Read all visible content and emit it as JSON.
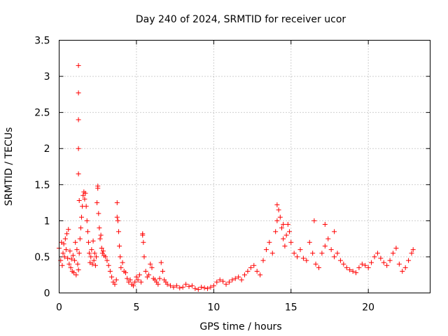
{
  "chart_data": {
    "type": "scatter",
    "title": "Day 240 of 2024, SRMTID for receiver ucor",
    "xlabel": "GPS time / hours",
    "ylabel": "SRMTID / TECUs",
    "xlim": [
      0,
      24
    ],
    "ylim": [
      0,
      3.5
    ],
    "xticks": [
      0,
      5,
      10,
      15,
      20
    ],
    "xtick_labels": [
      "0",
      "5",
      "10",
      "15",
      "20"
    ],
    "yticks": [
      0,
      0.5,
      1,
      1.5,
      2,
      2.5,
      3,
      3.5
    ],
    "ytick_labels": [
      "0",
      "0.5",
      "1",
      "1.5",
      "2",
      "2.5",
      "3",
      "3.5"
    ],
    "grid": true,
    "marker": "+",
    "series_color": "#ff0000",
    "series": [
      {
        "name": "SRMTID",
        "points": [
          [
            0.0,
            0.62
          ],
          [
            0.1,
            0.45
          ],
          [
            0.15,
            0.7
          ],
          [
            0.2,
            0.38
          ],
          [
            0.25,
            0.55
          ],
          [
            0.3,
            0.68
          ],
          [
            0.35,
            0.5
          ],
          [
            0.4,
            0.75
          ],
          [
            0.45,
            0.6
          ],
          [
            0.5,
            0.82
          ],
          [
            0.55,
            0.48
          ],
          [
            0.6,
            0.88
          ],
          [
            0.65,
            0.4
          ],
          [
            0.7,
            0.58
          ],
          [
            0.75,
            0.35
          ],
          [
            0.8,
            0.47
          ],
          [
            0.85,
            0.3
          ],
          [
            0.9,
            0.52
          ],
          [
            0.95,
            0.28
          ],
          [
            1.0,
            0.45
          ],
          [
            1.05,
            0.7
          ],
          [
            1.1,
            0.25
          ],
          [
            1.15,
            0.6
          ],
          [
            1.2,
            0.4
          ],
          [
            1.25,
            0.32
          ],
          [
            1.3,
            0.55
          ],
          [
            1.35,
            0.75
          ],
          [
            1.4,
            0.9
          ],
          [
            1.45,
            1.05
          ],
          [
            1.5,
            1.2
          ],
          [
            1.55,
            1.35
          ],
          [
            1.6,
            1.4
          ],
          [
            1.65,
            1.3
          ],
          [
            1.7,
            1.38
          ],
          [
            1.75,
            1.2
          ],
          [
            1.8,
            1.0
          ],
          [
            1.85,
            0.85
          ],
          [
            1.9,
            0.7
          ],
          [
            1.95,
            0.55
          ],
          [
            2.0,
            0.42
          ],
          [
            2.05,
            0.5
          ],
          [
            2.1,
            0.6
          ],
          [
            2.15,
            0.4
          ],
          [
            2.2,
            0.72
          ],
          [
            2.25,
            0.45
          ],
          [
            2.3,
            0.55
          ],
          [
            2.35,
            0.38
          ],
          [
            2.4,
            0.5
          ],
          [
            2.45,
            1.25
          ],
          [
            2.5,
            1.45
          ],
          [
            2.55,
            1.1
          ],
          [
            2.6,
            0.9
          ],
          [
            2.65,
            0.75
          ],
          [
            2.7,
            0.8
          ],
          [
            2.75,
            0.62
          ],
          [
            2.8,
            0.55
          ],
          [
            2.85,
            0.58
          ],
          [
            2.9,
            0.52
          ],
          [
            3.0,
            0.5
          ],
          [
            3.1,
            0.45
          ],
          [
            3.2,
            0.38
          ],
          [
            3.3,
            0.3
          ],
          [
            3.4,
            0.22
          ],
          [
            3.5,
            0.15
          ],
          [
            3.6,
            0.12
          ],
          [
            3.7,
            0.18
          ],
          [
            3.75,
            1.25
          ],
          [
            3.8,
            1.0
          ],
          [
            3.85,
            0.85
          ],
          [
            3.9,
            0.65
          ],
          [
            3.95,
            0.5
          ],
          [
            4.0,
            0.35
          ],
          [
            4.1,
            0.42
          ],
          [
            4.2,
            0.3
          ],
          [
            4.3,
            0.28
          ],
          [
            4.4,
            0.2
          ],
          [
            4.5,
            0.15
          ],
          [
            4.6,
            0.18
          ],
          [
            4.7,
            0.12
          ],
          [
            4.8,
            0.1
          ],
          [
            4.9,
            0.15
          ],
          [
            5.0,
            0.22
          ],
          [
            5.1,
            0.18
          ],
          [
            5.2,
            0.25
          ],
          [
            5.3,
            0.15
          ],
          [
            5.4,
            0.8
          ],
          [
            5.45,
            0.7
          ],
          [
            5.5,
            0.5
          ],
          [
            5.6,
            0.3
          ],
          [
            5.7,
            0.22
          ],
          [
            5.8,
            0.25
          ],
          [
            5.9,
            0.4
          ],
          [
            6.0,
            0.35
          ],
          [
            6.1,
            0.2
          ],
          [
            6.2,
            0.18
          ],
          [
            6.3,
            0.15
          ],
          [
            6.4,
            0.12
          ],
          [
            6.5,
            0.2
          ],
          [
            6.6,
            0.42
          ],
          [
            6.7,
            0.3
          ],
          [
            6.8,
            0.18
          ],
          [
            6.9,
            0.15
          ],
          [
            7.0,
            0.12
          ],
          [
            7.2,
            0.1
          ],
          [
            7.4,
            0.08
          ],
          [
            7.6,
            0.1
          ],
          [
            7.8,
            0.07
          ],
          [
            8.0,
            0.08
          ],
          [
            8.2,
            0.12
          ],
          [
            8.4,
            0.09
          ],
          [
            8.6,
            0.1
          ],
          [
            8.8,
            0.06
          ],
          [
            9.0,
            0.05
          ],
          [
            9.2,
            0.08
          ],
          [
            9.4,
            0.07
          ],
          [
            9.6,
            0.06
          ],
          [
            9.8,
            0.08
          ],
          [
            10.0,
            0.1
          ],
          [
            10.2,
            0.15
          ],
          [
            10.4,
            0.18
          ],
          [
            10.6,
            0.16
          ],
          [
            10.8,
            0.12
          ],
          [
            11.0,
            0.15
          ],
          [
            11.2,
            0.18
          ],
          [
            11.4,
            0.2
          ],
          [
            11.6,
            0.22
          ],
          [
            11.8,
            0.18
          ],
          [
            12.0,
            0.25
          ],
          [
            12.2,
            0.3
          ],
          [
            12.4,
            0.35
          ],
          [
            12.6,
            0.38
          ],
          [
            12.8,
            0.3
          ],
          [
            13.0,
            0.25
          ],
          [
            13.2,
            0.45
          ],
          [
            13.4,
            0.6
          ],
          [
            13.6,
            0.7
          ],
          [
            13.8,
            0.55
          ],
          [
            14.0,
            0.85
          ],
          [
            14.1,
            1.0
          ],
          [
            14.2,
            1.15
          ],
          [
            14.3,
            1.05
          ],
          [
            14.4,
            0.9
          ],
          [
            14.5,
            0.75
          ],
          [
            14.6,
            0.65
          ],
          [
            14.7,
            0.8
          ],
          [
            14.8,
            0.95
          ],
          [
            14.9,
            0.85
          ],
          [
            15.0,
            0.7
          ],
          [
            15.2,
            0.55
          ],
          [
            15.4,
            0.5
          ],
          [
            15.6,
            0.6
          ],
          [
            15.8,
            0.48
          ],
          [
            16.0,
            0.45
          ],
          [
            16.2,
            0.7
          ],
          [
            16.4,
            0.55
          ],
          [
            16.6,
            0.4
          ],
          [
            16.8,
            0.35
          ],
          [
            17.0,
            0.55
          ],
          [
            17.2,
            0.65
          ],
          [
            17.4,
            0.75
          ],
          [
            17.6,
            0.6
          ],
          [
            17.8,
            0.5
          ],
          [
            18.0,
            0.55
          ],
          [
            18.2,
            0.45
          ],
          [
            18.4,
            0.4
          ],
          [
            18.6,
            0.35
          ],
          [
            18.8,
            0.32
          ],
          [
            19.0,
            0.3
          ],
          [
            19.2,
            0.28
          ],
          [
            19.4,
            0.35
          ],
          [
            19.6,
            0.4
          ],
          [
            19.8,
            0.38
          ],
          [
            20.0,
            0.35
          ],
          [
            20.2,
            0.42
          ],
          [
            20.4,
            0.5
          ],
          [
            20.6,
            0.55
          ],
          [
            20.8,
            0.48
          ],
          [
            21.0,
            0.42
          ],
          [
            21.2,
            0.38
          ],
          [
            21.4,
            0.45
          ],
          [
            21.6,
            0.55
          ],
          [
            21.8,
            0.62
          ],
          [
            22.0,
            0.4
          ],
          [
            22.2,
            0.3
          ],
          [
            22.4,
            0.35
          ],
          [
            22.6,
            0.45
          ],
          [
            22.8,
            0.55
          ],
          [
            22.9,
            0.6
          ],
          [
            1.25,
            3.15
          ],
          [
            1.25,
            2.77
          ],
          [
            1.25,
            2.4
          ],
          [
            1.25,
            2.0
          ],
          [
            1.25,
            1.65
          ],
          [
            1.3,
            1.28
          ],
          [
            5.4,
            0.82
          ],
          [
            3.75,
            1.05
          ],
          [
            2.5,
            1.48
          ],
          [
            14.1,
            1.22
          ],
          [
            14.5,
            0.95
          ],
          [
            16.5,
            1.0
          ],
          [
            17.2,
            0.95
          ],
          [
            17.8,
            0.85
          ]
        ]
      }
    ]
  }
}
